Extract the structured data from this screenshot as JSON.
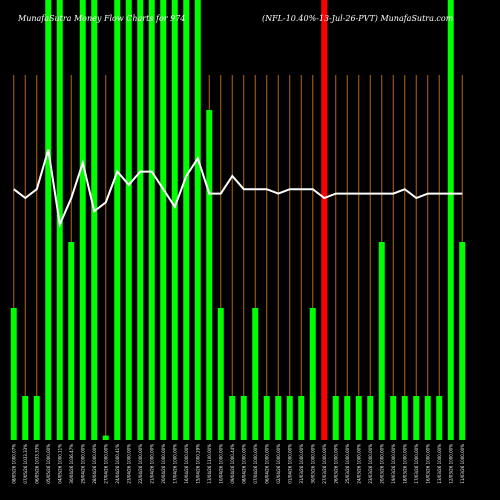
{
  "chart_data": {
    "type": "bar",
    "title_left": "MunafaSutra Money Flow Charts for 974",
    "title_right": "(NFL-10.40%-13-Jul-26-PVT) MunafaSutra.com",
    "colors": {
      "background": "#000000",
      "bar_up": "#00ff00",
      "bar_highlight": "#ff0000",
      "grid_line": "#b8670a",
      "flow_line": "#ffffff"
    },
    "ylim": [
      0,
      100
    ],
    "categories": [
      "08/05/26 1000.07%",
      "07/05/26 1033.33%",
      "06/05/26 1033.33%",
      "05/05/26 1000.00%",
      "04/05/26 1000.11%",
      "30/04/26 1036.47%",
      "29/04/26 1000.00%",
      "28/04/26 1000.00%",
      "27/04/26 1000.00%",
      "24/04/26 1000.41%",
      "23/04/26 1000.00%",
      "22/04/26 1000.00%",
      "21/04/26 1000.00%",
      "20/04/26 1000.00%",
      "17/04/26 1000.00%",
      "16/04/26 1000.00%",
      "15/04/26 1000.29%",
      "13/04/26 1100.00%",
      "10/04/26 1000.00%",
      "09/04/26 1000.44%",
      "08/04/26 1000.00%",
      "07/04/26 1000.00%",
      "06/04/26 1000.00%",
      "02/04/26 1000.00%",
      "01/04/26 1000.00%",
      "31/03/26 1000.00%",
      "30/03/26 1000.00%",
      "27/03/26 1000.00%",
      "26/03/26 1000.00%",
      "25/03/26 1000.00%",
      "24/03/26 1000.00%",
      "23/03/26 1000.00%",
      "20/03/26 1000.00%",
      "19/03/26 1000.00%",
      "18/03/26 1000.00%",
      "17/03/26 1000.00%",
      "16/03/26 1000.00%",
      "13/03/26 1000.00%",
      "12/03/26 1000.00%",
      "11/03/26 1000.00%"
    ],
    "values": [
      30,
      10,
      10,
      100,
      100,
      45,
      100,
      100,
      1,
      100,
      100,
      100,
      100,
      100,
      100,
      100,
      100,
      75,
      30,
      10,
      10,
      30,
      10,
      10,
      10,
      10,
      30,
      100,
      10,
      10,
      10,
      10,
      45,
      10,
      10,
      10,
      10,
      10,
      100,
      45
    ],
    "bar_colors": [
      "up",
      "up",
      "up",
      "up",
      "up",
      "up",
      "up",
      "up",
      "up",
      "up",
      "up",
      "up",
      "up",
      "up",
      "up",
      "up",
      "up",
      "up",
      "up",
      "up",
      "up",
      "up",
      "up",
      "up",
      "up",
      "up",
      "up",
      "highlight",
      "up",
      "up",
      "up",
      "up",
      "up",
      "up",
      "up",
      "up",
      "up",
      "up",
      "up",
      "up"
    ],
    "flow_line": [
      57,
      55,
      57,
      66,
      49,
      55,
      63,
      52,
      54,
      61,
      58,
      61,
      61,
      57,
      53,
      60,
      64,
      56,
      56,
      60,
      57,
      57,
      57,
      56,
      57,
      57,
      57,
      55,
      56,
      56,
      56,
      56,
      56,
      56,
      57,
      55,
      56,
      56,
      56,
      56
    ]
  }
}
